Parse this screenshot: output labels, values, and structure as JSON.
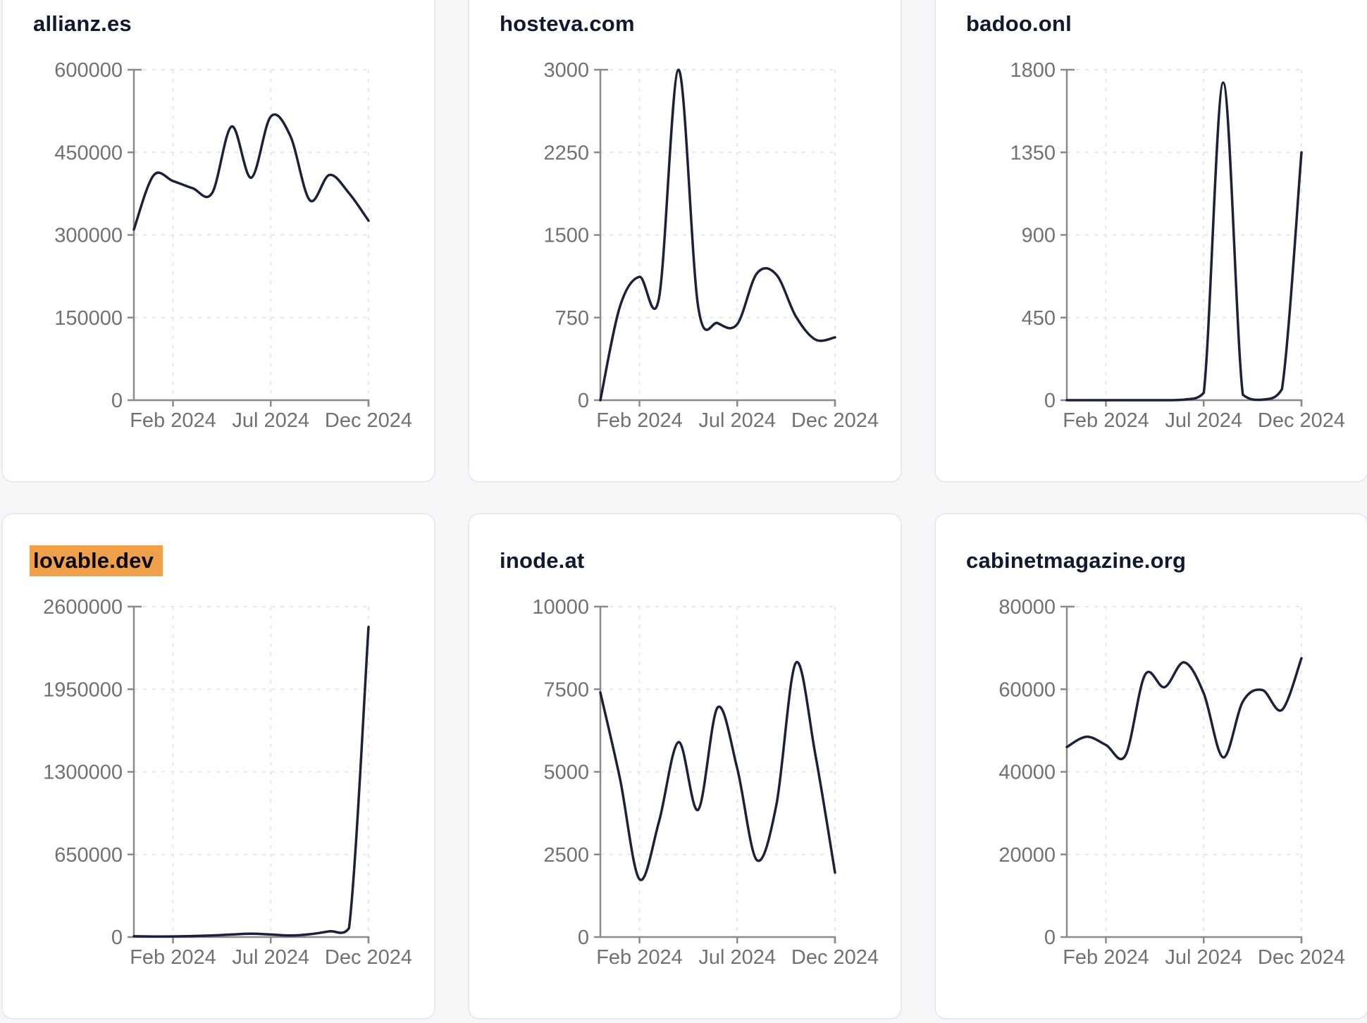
{
  "colors": {
    "page_bg": "#f6f7f9",
    "card_bg": "#ffffff",
    "card_border": "#e8e9f1",
    "title_text": "#10192e",
    "highlight_bg": "#f0a04b",
    "line": "#1b2138",
    "axis": "#8a8a8a",
    "tick_label": "#717171",
    "gridline": "#e7e7ea"
  },
  "x_tick_labels": [
    "Feb 2024",
    "Jul 2024",
    "Dec 2024"
  ],
  "months": [
    "2023-12",
    "2024-01",
    "2024-02",
    "2024-03",
    "2024-04",
    "2024-05",
    "2024-06",
    "2024-07",
    "2024-08",
    "2024-09",
    "2024-10",
    "2024-11",
    "2024-12"
  ],
  "chart_data": [
    {
      "type": "line",
      "title": "allianz.es",
      "highlighted": false,
      "ylim": [
        0,
        600000
      ],
      "y_ticks": [
        0,
        150000,
        300000,
        450000,
        600000
      ],
      "values": [
        310000,
        408000,
        398000,
        385000,
        376000,
        497000,
        404000,
        515000,
        480000,
        363000,
        409000,
        376000,
        326000
      ],
      "grid": true,
      "legend": "none"
    },
    {
      "type": "line",
      "title": "hosteva.com",
      "highlighted": false,
      "ylim": [
        0,
        3000
      ],
      "y_ticks": [
        0,
        750,
        1500,
        2250,
        3000
      ],
      "values": [
        0,
        850,
        1120,
        930,
        3000,
        850,
        700,
        690,
        1150,
        1140,
        760,
        550,
        570
      ],
      "grid": true,
      "legend": "none"
    },
    {
      "type": "line",
      "title": "badoo.onl",
      "highlighted": false,
      "ylim": [
        0,
        1800
      ],
      "y_ticks": [
        0,
        450,
        900,
        1350,
        1800
      ],
      "values": [
        0,
        0,
        0,
        0,
        0,
        0,
        3,
        40,
        1730,
        30,
        3,
        60,
        1350
      ],
      "grid": true,
      "legend": "none"
    },
    {
      "type": "line",
      "title": "lovable.dev",
      "highlighted": true,
      "ylim": [
        0,
        2600000
      ],
      "y_ticks": [
        0,
        650000,
        1300000,
        1950000,
        2600000
      ],
      "values": [
        6000,
        4000,
        5000,
        8000,
        12000,
        20000,
        26000,
        20000,
        12000,
        22000,
        45000,
        70000,
        2440000
      ],
      "grid": true,
      "legend": "none"
    },
    {
      "type": "line",
      "title": "inode.at",
      "highlighted": false,
      "ylim": [
        0,
        10000
      ],
      "y_ticks": [
        0,
        2500,
        5000,
        7500,
        10000
      ],
      "values": [
        7400,
        4800,
        1750,
        3500,
        5900,
        3850,
        6950,
        5100,
        2330,
        4000,
        8300,
        5500,
        1950
      ],
      "grid": true,
      "legend": "none"
    },
    {
      "type": "line",
      "title": "cabinetmagazine.org",
      "highlighted": false,
      "ylim": [
        0,
        80000
      ],
      "y_ticks": [
        0,
        20000,
        40000,
        60000,
        80000
      ],
      "values": [
        46000,
        48500,
        46500,
        44000,
        63500,
        60500,
        66500,
        59000,
        43500,
        57000,
        59800,
        55000,
        67500
      ],
      "grid": true,
      "legend": "none"
    }
  ]
}
